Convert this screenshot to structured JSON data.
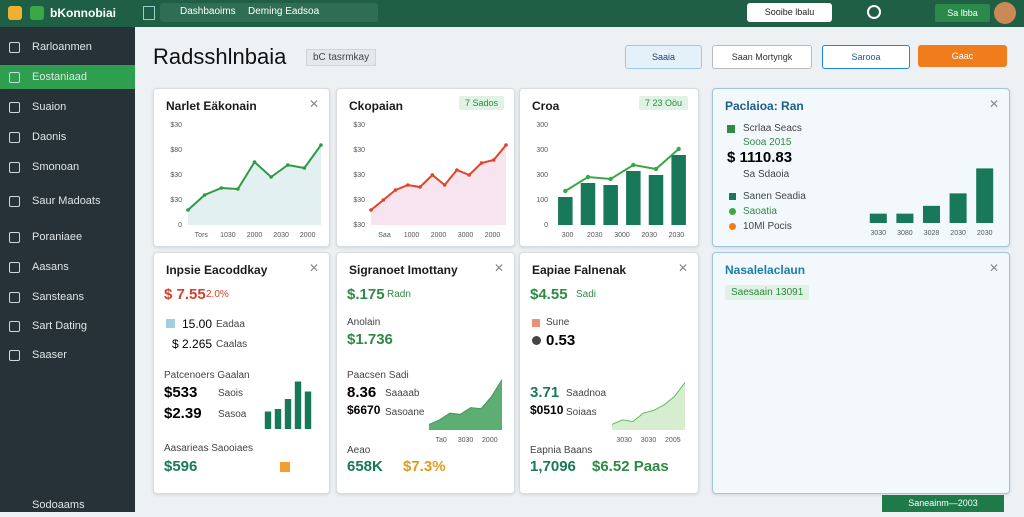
{
  "topbar": {
    "brand": "bKonnobiai",
    "breadcrumb": "Dashbaoims",
    "search": "Deming Eadsoa",
    "account_button": "Sooibe lbalu",
    "user": "Sa lbba"
  },
  "sidebar": {
    "items": [
      "Rarloanmen",
      "Eostaniaad",
      "Suaion",
      "Daonis",
      "Smonoan",
      "Saur Madoats",
      "Poraniaee",
      "Aasans",
      "Sansteans",
      "Sart Dating",
      "Saaser"
    ],
    "footer": "Sodoaams"
  },
  "header": {
    "title": "Radsshlnbaia",
    "tag": "bC tasrmkay",
    "buttons": [
      "Saaia",
      "Saan Mortyngk",
      "Sarooa",
      "Gaac"
    ]
  },
  "cards": [
    {
      "title": "Narlet Eäkonain",
      "chart": {
        "type": "area_line",
        "color": "#2e9a47",
        "fill": "#e3f0f0",
        "ylim": [
          0,
          100
        ],
        "values": [
          15,
          30,
          37,
          36,
          63,
          48,
          60,
          57,
          80
        ],
        "y_labels": [
          "$30",
          "$80",
          "$30",
          "$30",
          "0"
        ],
        "x_labels": [
          "Tors",
          "1030",
          "2000",
          "2030",
          "2000"
        ]
      }
    },
    {
      "title": "Ckopaian",
      "badge": "7 Sados",
      "chart": {
        "type": "area_line",
        "color": "#e0452b",
        "fill": "#f8e4ee",
        "ylim": [
          0,
          100
        ],
        "values": [
          15,
          25,
          35,
          40,
          38,
          50,
          40,
          55,
          50,
          62,
          65,
          80
        ],
        "y_labels": [
          "$30",
          "$30",
          "$30",
          "$30",
          "$30"
        ],
        "x_labels": [
          "Saa",
          "1000",
          "2000",
          "3000",
          "2000"
        ]
      }
    },
    {
      "title": "Croa",
      "badge": "7 23 Oöu",
      "chart": {
        "type": "bar_line",
        "color": "#17785a",
        "line_color": "#3aa845",
        "ylim": [
          0,
          100
        ],
        "values": [
          28,
          42,
          40,
          54,
          50,
          70
        ],
        "y_labels": [
          "300",
          "300",
          "300",
          "100",
          "0"
        ],
        "x_labels": [
          "300",
          "2030",
          "3000",
          "2030",
          "2030"
        ]
      }
    },
    {
      "title": "Paclaioa: Ran",
      "legend_top": "Scrlaa Seacs",
      "legend_sub": "Sooa 2015",
      "big_value": "$ 1110.83",
      "note": "Sa Sdaoia",
      "legend": [
        "Sanen Seadia",
        "Saoatia",
        "10Ml Pocis"
      ],
      "chart": {
        "type": "bar",
        "color": "#17785a",
        "ylim": [
          0,
          100
        ],
        "values": [
          12,
          12,
          22,
          38,
          70
        ],
        "x_labels": [
          "3030",
          "3080",
          "3028",
          "2030",
          "2030"
        ]
      }
    },
    {
      "title": "Inpsie Eacoddkay",
      "value": "$ 7.55",
      "delta": "2.0%",
      "rows": [
        "15.00",
        "Eadaa",
        "$ 2.265",
        "Caalas"
      ],
      "section": "Patcenoers Gaalan",
      "sub_rows": [
        "$533",
        "Saois",
        "$2.39",
        "Sasoa"
      ],
      "footer_label": "Aasarieas Saooiaes",
      "footer_value": "$596",
      "chart": {
        "type": "bar",
        "color": "#17785a",
        "ylim": [
          0,
          100
        ],
        "values": [
          35,
          40,
          60,
          95,
          75
        ]
      }
    },
    {
      "title": "Sigranoet Imottany",
      "value": "$.175",
      "delta": "Radn",
      "label": "Anolain",
      "sub_value": "$1.736",
      "section": "Paacsen Sadi",
      "sub_rows": [
        "8.36",
        "Saaaab",
        "$6670",
        "Sasoane"
      ],
      "footer_label": "Aeao",
      "footer_value": "658K",
      "footer_value2": "$7.3%",
      "chart": {
        "type": "area",
        "color": "#3f9a5e",
        "fill": "#5cae72",
        "ylim": [
          0,
          100
        ],
        "values": [
          10,
          18,
          30,
          28,
          40,
          38,
          60,
          90
        ],
        "x_labels": [
          "Ta0",
          "3030",
          "2000"
        ]
      }
    },
    {
      "title": "Eapiae Falnenak",
      "value": "$4.55",
      "delta": "Sadi",
      "label": "Sune",
      "sub_value": "0.53",
      "section": "",
      "sub_rows": [
        "3.71",
        "Saadnoa",
        "$0510",
        "Soiaas"
      ],
      "footer_label": "Eapnia Baans",
      "footer_value": "1,7096",
      "footer_value2": "$6.52 Paas",
      "chart": {
        "type": "area",
        "color": "#5bbf5a",
        "fill": "#d6eecf",
        "ylim": [
          0,
          100
        ],
        "values": [
          10,
          18,
          15,
          30,
          35,
          45,
          60,
          85
        ],
        "x_labels": [
          "3030",
          "3030",
          "2005"
        ]
      }
    },
    {
      "title": "Nasalelaclaun",
      "badge": "Saesaain 13091"
    }
  ],
  "footer": "Saneainm—2003"
}
